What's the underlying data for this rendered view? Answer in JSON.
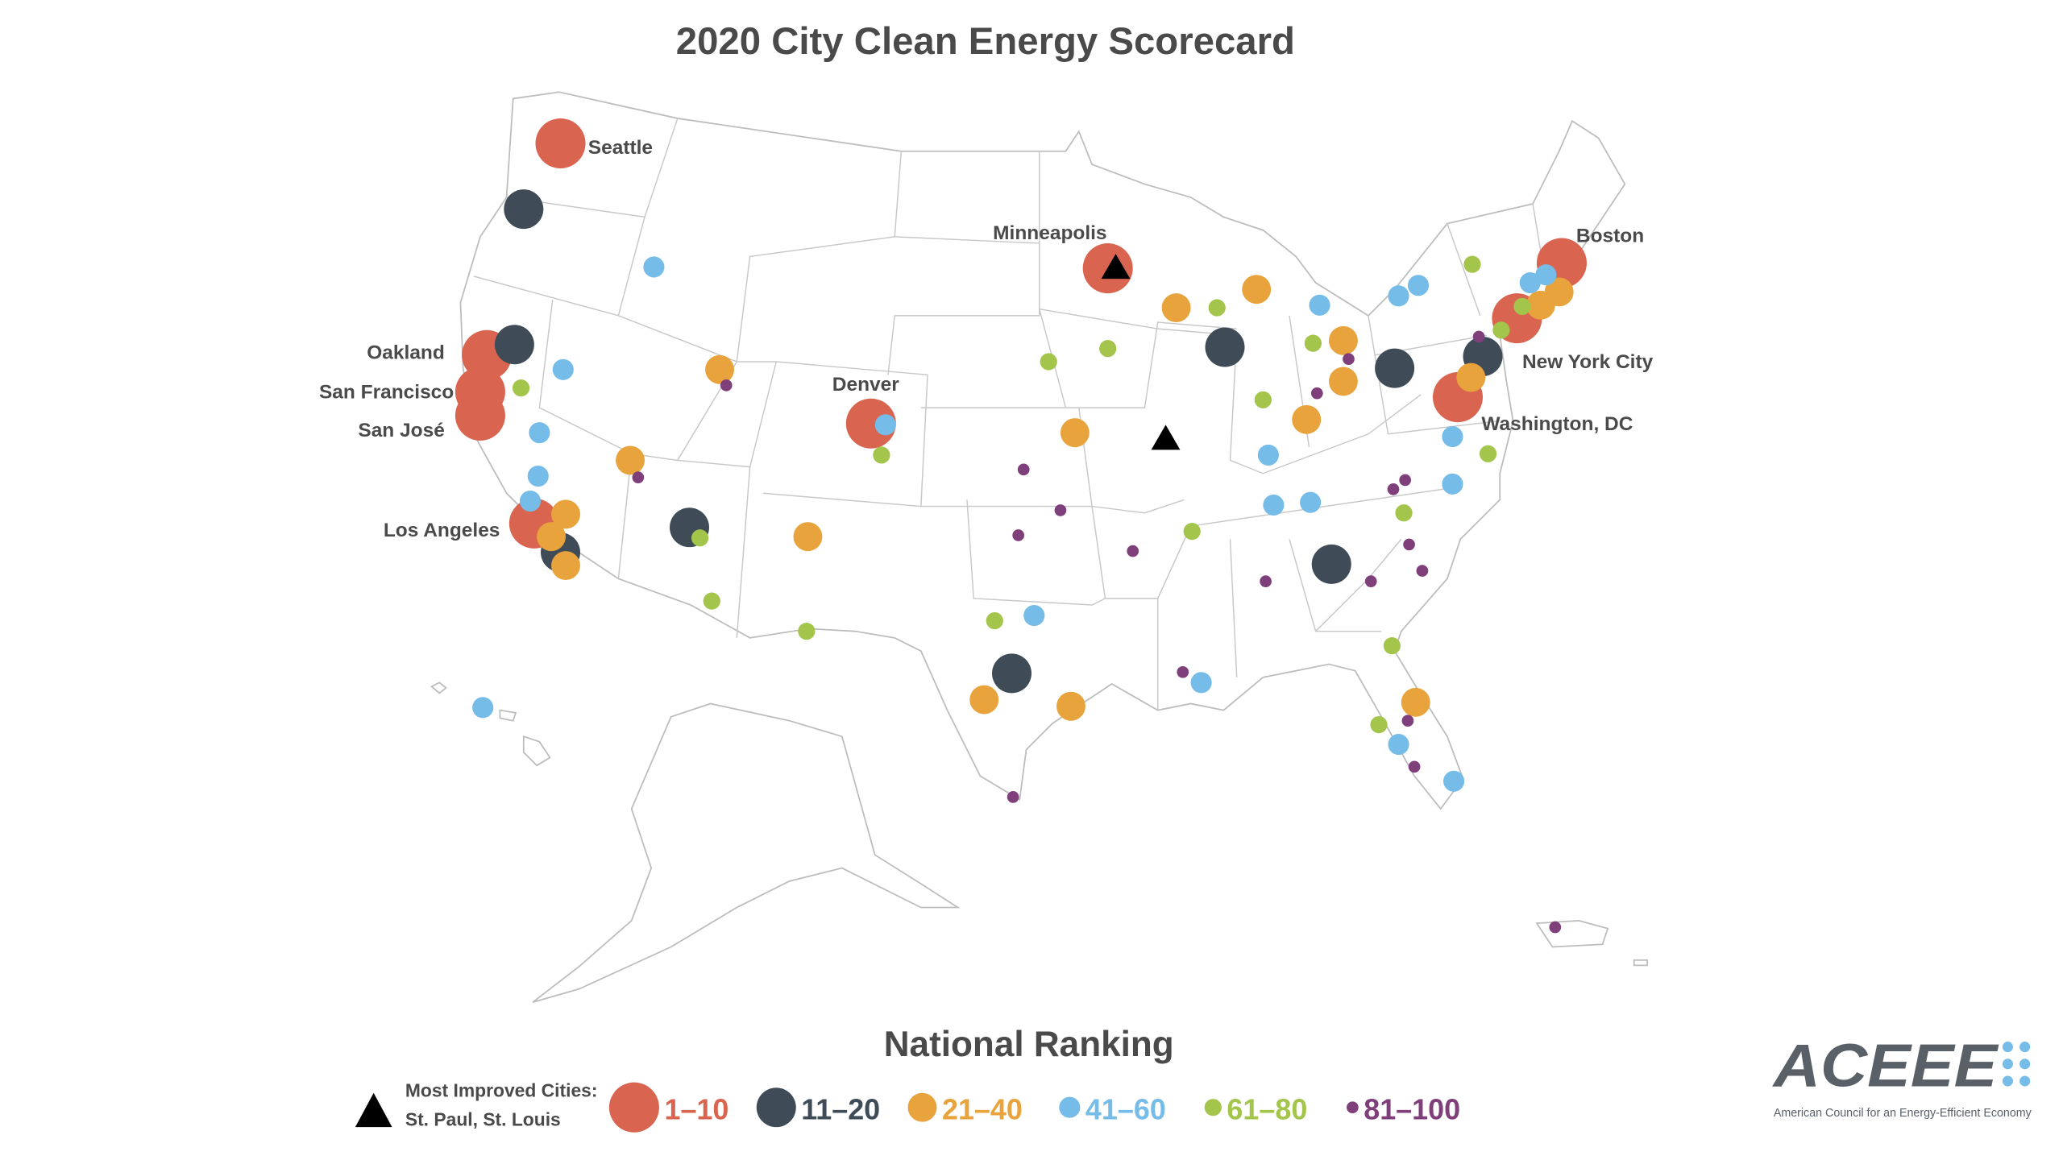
{
  "title": "2020 City Clean Energy Scorecard",
  "legend": {
    "heading": "National Ranking",
    "most_improved_label": "Most Improved Cities:",
    "most_improved_cities": "St. Paul, St. Louis",
    "tiers": [
      {
        "label": "1–10",
        "color": "#d9644f"
      },
      {
        "label": "11–20",
        "color": "#3f4c58"
      },
      {
        "label": "21–40",
        "color": "#e8a33d"
      },
      {
        "label": "41–60",
        "color": "#75bce8"
      },
      {
        "label": "61–80",
        "color": "#a3c54b"
      },
      {
        "label": "81–100",
        "color": "#7e3f7a"
      }
    ]
  },
  "city_labels": {
    "seattle": "Seattle",
    "oakland": "Oakland",
    "san_francisco": "San Francisco",
    "san_jose": "San José",
    "los_angeles": "Los Angeles",
    "denver": "Denver",
    "minneapolis": "Minneapolis",
    "boston": "Boston",
    "new_york": "New York City",
    "washington": "Washington, DC"
  },
  "logo": {
    "text": "ACEEE",
    "subtitle": "American Council for an Energy-Efficient Economy",
    "accent_color": "#75bce8"
  }
}
